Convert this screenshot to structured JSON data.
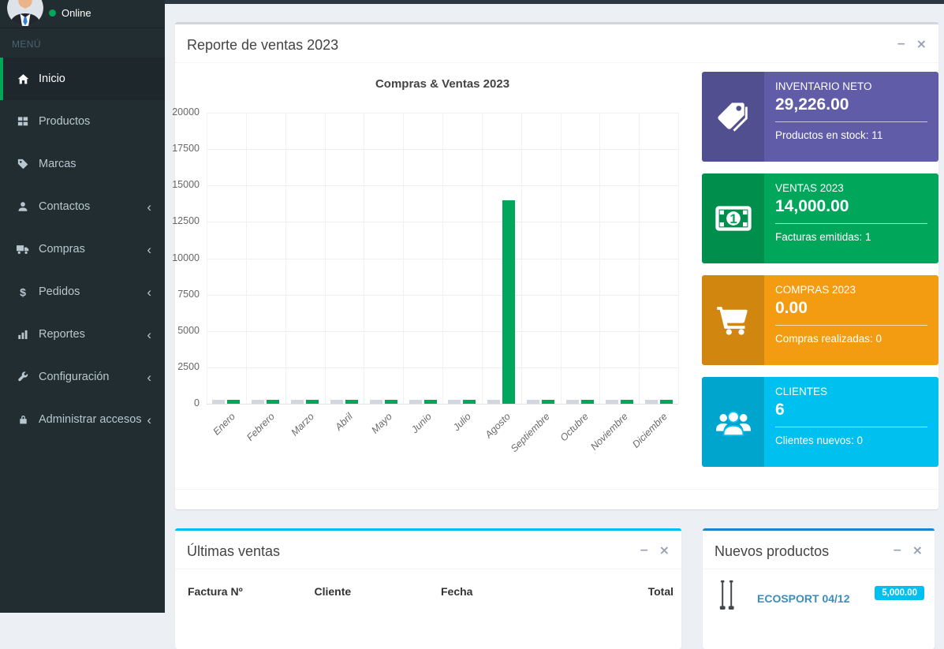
{
  "sidebar": {
    "status_label": "Online",
    "menu_label": "MENÚ",
    "items": [
      {
        "label": "Inicio",
        "icon": "home-icon",
        "active": true,
        "has_submenu": false
      },
      {
        "label": "Productos",
        "icon": "grid-icon",
        "active": false,
        "has_submenu": false
      },
      {
        "label": "Marcas",
        "icon": "tag-icon",
        "active": false,
        "has_submenu": false
      },
      {
        "label": "Contactos",
        "icon": "user-icon",
        "active": false,
        "has_submenu": true
      },
      {
        "label": "Compras",
        "icon": "truck-icon",
        "active": false,
        "has_submenu": true
      },
      {
        "label": "Pedidos",
        "icon": "dollar-icon",
        "active": false,
        "has_submenu": true
      },
      {
        "label": "Reportes",
        "icon": "bar-chart-icon",
        "active": false,
        "has_submenu": true
      },
      {
        "label": "Configuración",
        "icon": "wrench-icon",
        "active": false,
        "has_submenu": true
      },
      {
        "label": "Administrar accesos",
        "icon": "lock-icon",
        "active": false,
        "has_submenu": true
      }
    ]
  },
  "sales_report_panel": {
    "title": "Reporte de ventas 2023"
  },
  "chart_data": {
    "type": "bar",
    "title": "Compras & Ventas 2023",
    "categories": [
      "Enero",
      "Febrero",
      "Marzo",
      "Abril",
      "Mayo",
      "Junio",
      "Julio",
      "Agosto",
      "Septiembre",
      "Octubre",
      "Noviembre",
      "Diciembre"
    ],
    "series": [
      {
        "name": "Compras",
        "color": "#d2d6de",
        "values": [
          0,
          0,
          0,
          0,
          0,
          0,
          0,
          0,
          0,
          0,
          0,
          0
        ]
      },
      {
        "name": "Ventas",
        "color": "#00a65a",
        "values": [
          0,
          0,
          0,
          0,
          0,
          0,
          0,
          14000,
          0,
          0,
          0,
          0
        ]
      }
    ],
    "xlabel": "",
    "ylabel": "",
    "ylim": [
      0,
      20000
    ],
    "ytick_step": 2500,
    "grid": true,
    "legend": "hidden"
  },
  "info_boxes": [
    {
      "title": "INVENTARIO NETO",
      "value": "29,226.00",
      "subtitle": "Productos en stock: 11",
      "color": "#605ca8",
      "icon": "tags-icon"
    },
    {
      "title": "VENTAS 2023",
      "value": "14,000.00",
      "subtitle": "Facturas emitidas: 1",
      "color": "#00a65a",
      "icon": "money-icon"
    },
    {
      "title": "COMPRAS 2023",
      "value": "0.00",
      "subtitle": "Compras realizadas: 0",
      "color": "#f39c12",
      "icon": "cart-icon"
    },
    {
      "title": "CLIENTES",
      "value": "6",
      "subtitle": "Clientes nuevos: 0",
      "color": "#00c0ef",
      "icon": "users-icon"
    }
  ],
  "latest_sales_panel": {
    "title": "Últimas ventas",
    "columns": [
      "Factura Nº",
      "Cliente",
      "Fecha",
      "Total"
    ],
    "rows": []
  },
  "new_products_panel": {
    "title": "Nuevos productos",
    "items": [
      {
        "name": "ECOSPORT 04/12",
        "badge": "5,000.00",
        "badge_color": "#00c0ef",
        "image": "wipers-image"
      }
    ]
  },
  "colors": {
    "sidebar_bg": "#222d32",
    "active_accent": "#00a65a",
    "default_panel_border": "#d2d6de",
    "latest_sales_border": "#00c0ef",
    "new_products_border": "#1d84c5"
  }
}
